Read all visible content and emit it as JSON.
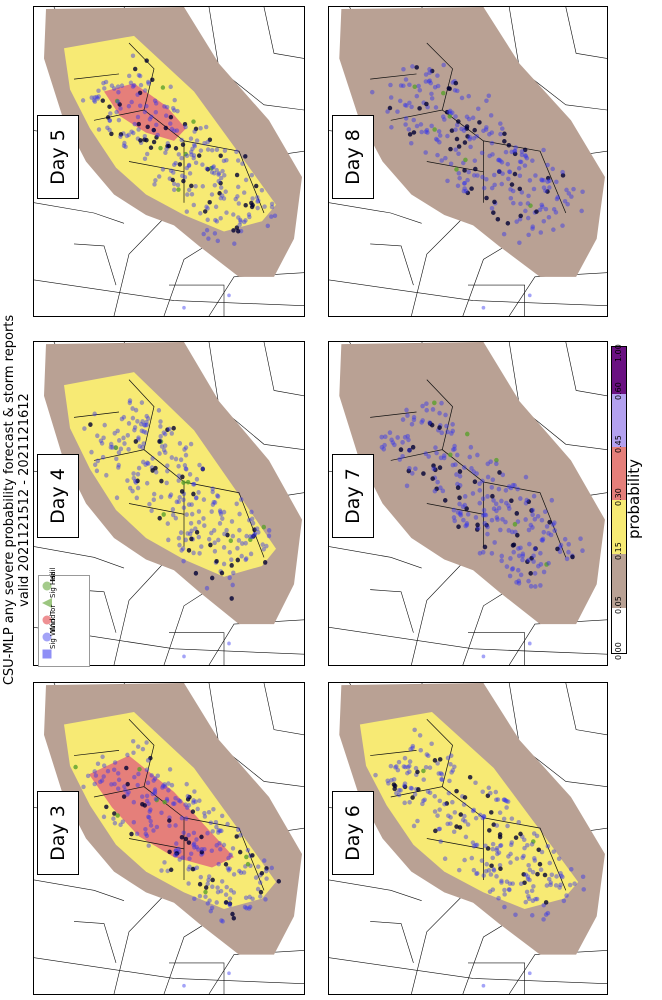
{
  "title": {
    "line1": "CSU-MLP any severe probability forecast & storm reports",
    "line2": "valid 2021121512 - 2021121612"
  },
  "colors": {
    "p005": "#b9a194",
    "p015": "#f7ea74",
    "p030": "#e57f7a",
    "p045": "#b3a1f0",
    "p060": "#6a1182",
    "report_wind": "#3333ee",
    "report_hail": "#5aa02c",
    "report_sig": "#000033",
    "boundary": "#111111"
  },
  "panels": [
    {
      "id": "day5",
      "label": "Day 5",
      "max_category": "0.30"
    },
    {
      "id": "day8",
      "label": "Day 8",
      "max_category": "0.05"
    },
    {
      "id": "day4",
      "label": "Day 4",
      "max_category": "0.15"
    },
    {
      "id": "day7",
      "label": "Day 7",
      "max_category": "0.05"
    },
    {
      "id": "day3",
      "label": "Day 3",
      "max_category": "0.30"
    },
    {
      "id": "day6",
      "label": "Day 6",
      "max_category": "0.15"
    }
  ],
  "legend": {
    "items": [
      {
        "label": "Hail",
        "marker": "circle-green"
      },
      {
        "label": "Sig Hail",
        "marker": "triangle-green"
      },
      {
        "label": "Tor",
        "marker": "circle-red"
      },
      {
        "label": "Wind",
        "marker": "circle-blue"
      },
      {
        "label": "Sig Wind",
        "marker": "square-blue"
      }
    ]
  },
  "colorbar": {
    "label": "probability",
    "ticks": [
      "0.00",
      "0.05",
      "0.15",
      "0.30",
      "0.45",
      "0.60",
      "1.00"
    ]
  }
}
